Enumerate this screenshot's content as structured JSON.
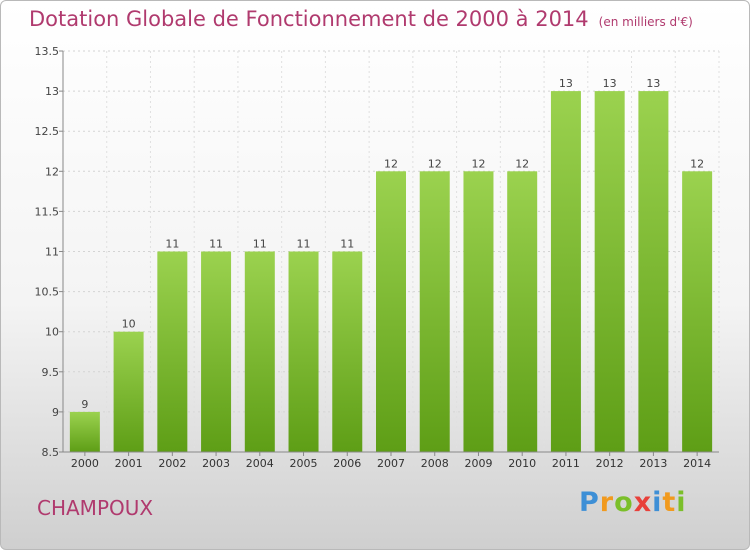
{
  "title": "Dotation Globale de Fonctionnement de 2000 à 2014",
  "unit": "(en milliers d'€)",
  "commune": "CHAMPOUX",
  "logo": {
    "text": "Proxiti",
    "letters": [
      {
        "ch": "P",
        "color": "#3d8fd6"
      },
      {
        "ch": "r",
        "color": "#f19a1e"
      },
      {
        "ch": "o",
        "color": "#7bbf2a"
      },
      {
        "ch": "x",
        "color": "#e8403a"
      },
      {
        "ch": "i",
        "color": "#3d8fd6"
      },
      {
        "ch": "t",
        "color": "#f19a1e"
      },
      {
        "ch": "i",
        "color": "#7bbf2a"
      }
    ]
  },
  "colors": {
    "bar_top": "#9bd24f",
    "bar_bottom": "#5e9e16",
    "title": "#b03a6e"
  },
  "chart_data": {
    "type": "bar",
    "categories": [
      "2000",
      "2001",
      "2002",
      "2003",
      "2004",
      "2005",
      "2006",
      "2007",
      "2008",
      "2009",
      "2010",
      "2011",
      "2012",
      "2013",
      "2014"
    ],
    "values": [
      9,
      10,
      11,
      11,
      11,
      11,
      11,
      12,
      12,
      12,
      12,
      13,
      13,
      13,
      12
    ],
    "value_labels": [
      "9",
      "10",
      "11",
      "11",
      "11",
      "11",
      "11",
      "12",
      "12",
      "12",
      "12",
      "13",
      "13",
      "13",
      "12"
    ],
    "ylim": [
      8.5,
      13.5
    ],
    "yticks": [
      8.5,
      9,
      9.5,
      10,
      10.5,
      11,
      11.5,
      12,
      12.5,
      13,
      13.5
    ],
    "ytick_labels": [
      "8.5",
      "9",
      "9.5",
      "10",
      "10.5",
      "11",
      "11.5",
      "12",
      "12.5",
      "13",
      "13.5"
    ],
    "grid": true
  }
}
